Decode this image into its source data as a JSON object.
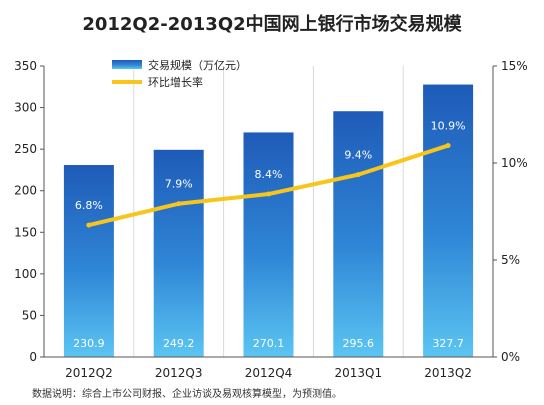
{
  "chart_data": {
    "type": "bar",
    "title": "2012Q2-2013Q2中国网上银行市场交易规模",
    "categories": [
      "2012Q2",
      "2012Q3",
      "2012Q4",
      "2013Q1",
      "2013Q2"
    ],
    "series": [
      {
        "name": "交易规模（万亿元）",
        "type": "bar",
        "axis": "left",
        "values": [
          230.9,
          249.2,
          270.1,
          295.6,
          327.7
        ],
        "labels": [
          "230.9",
          "249.2",
          "270.1",
          "295.6",
          "327.7"
        ]
      },
      {
        "name": "环比增长率",
        "type": "line",
        "axis": "right",
        "values": [
          6.8,
          7.9,
          8.4,
          9.4,
          10.9
        ],
        "labels": [
          "6.8%",
          "7.9%",
          "8.4%",
          "9.4%",
          "10.9%"
        ]
      }
    ],
    "y_left": {
      "min": 0,
      "max": 350,
      "ticks": [
        "0",
        "50",
        "100",
        "150",
        "200",
        "250",
        "300",
        "350"
      ]
    },
    "y_right": {
      "min": 0,
      "max": 15,
      "ticks": [
        "0%",
        "5%",
        "10%",
        "15%"
      ]
    },
    "legend_position": "top-left",
    "grid": "vertical"
  },
  "note": "数据说明：综合上市公司财报、企业访谈及易观核算模型，为预测值。",
  "colors": {
    "bar_top": "#1e5bb8",
    "bar_bottom": "#5bc5f2",
    "line": "#f7c51b",
    "title": "#222222",
    "axis": "#555555",
    "grid": "#d9d9d9"
  }
}
